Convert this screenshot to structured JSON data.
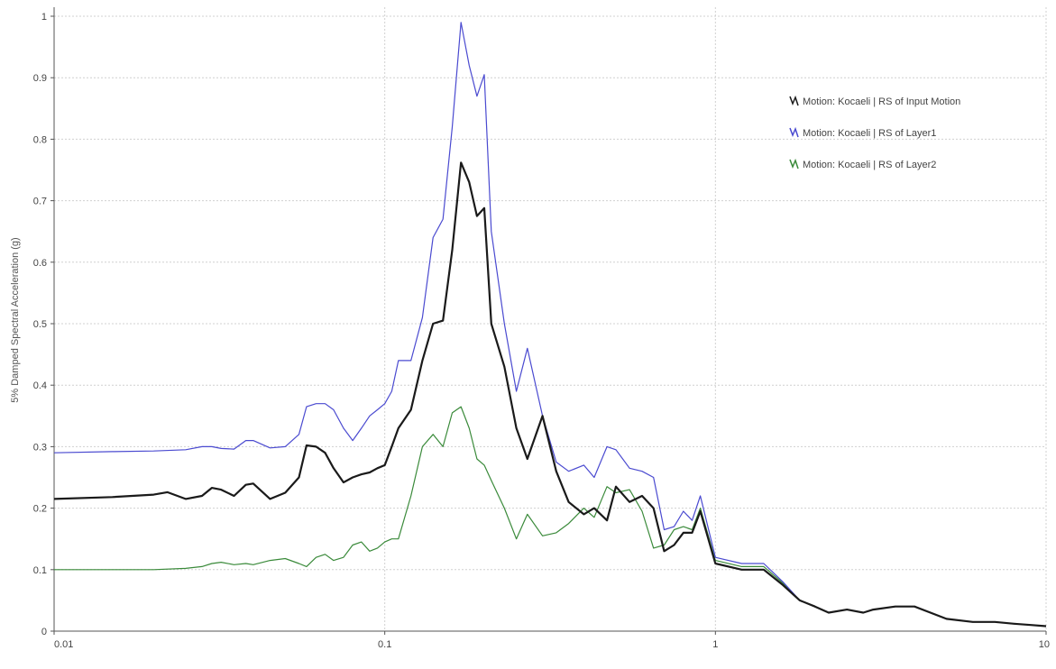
{
  "chart_data": {
    "type": "line",
    "x_scale": "log",
    "xlim": [
      0.01,
      10
    ],
    "ylim": [
      0,
      1
    ],
    "ylabel": "5% Damped Spectral Acceleration (g)",
    "xlabel": "",
    "grid": true,
    "legend_position": "top-right",
    "x_ticks": [
      "0.01",
      "0.1",
      "1",
      "10"
    ],
    "y_ticks": [
      "0",
      "0.1",
      "0.2",
      "0.3",
      "0.4",
      "0.5",
      "0.6",
      "0.7",
      "0.8",
      "0.9",
      "1"
    ],
    "series": [
      {
        "name": "Motion: Kocaeli | RS of Input Motion",
        "color": "#1a1a1a",
        "width": 2.2,
        "x": [
          0.01,
          0.015,
          0.02,
          0.022,
          0.025,
          0.028,
          0.03,
          0.032,
          0.035,
          0.038,
          0.04,
          0.045,
          0.05,
          0.055,
          0.058,
          0.062,
          0.066,
          0.07,
          0.075,
          0.08,
          0.085,
          0.09,
          0.095,
          0.1,
          0.105,
          0.11,
          0.12,
          0.13,
          0.14,
          0.15,
          0.16,
          0.17,
          0.18,
          0.19,
          0.2,
          0.21,
          0.23,
          0.25,
          0.27,
          0.3,
          0.33,
          0.36,
          0.4,
          0.43,
          0.47,
          0.5,
          0.55,
          0.6,
          0.65,
          0.7,
          0.75,
          0.8,
          0.85,
          0.9,
          1,
          1.2,
          1.4,
          1.6,
          1.8,
          2,
          2.2,
          2.5,
          2.8,
          3,
          3.5,
          4,
          5,
          6,
          7,
          8,
          9,
          10
        ],
        "y": [
          0.215,
          0.218,
          0.222,
          0.226,
          0.215,
          0.22,
          0.233,
          0.23,
          0.22,
          0.238,
          0.24,
          0.215,
          0.225,
          0.25,
          0.302,
          0.3,
          0.29,
          0.265,
          0.242,
          0.25,
          0.255,
          0.258,
          0.265,
          0.27,
          0.3,
          0.33,
          0.36,
          0.44,
          0.5,
          0.505,
          0.62,
          0.762,
          0.73,
          0.675,
          0.688,
          0.5,
          0.43,
          0.33,
          0.28,
          0.35,
          0.26,
          0.21,
          0.19,
          0.2,
          0.18,
          0.235,
          0.21,
          0.22,
          0.2,
          0.13,
          0.14,
          0.16,
          0.16,
          0.195,
          0.11,
          0.1,
          0.1,
          0.075,
          0.05,
          0.04,
          0.03,
          0.035,
          0.03,
          0.035,
          0.04,
          0.04,
          0.02,
          0.015,
          0.015,
          0.012,
          0.01,
          0.008
        ]
      },
      {
        "name": "Motion: Kocaeli | RS of Layer1",
        "color": "#4a4ad0",
        "width": 1.2,
        "x": [
          0.01,
          0.015,
          0.02,
          0.025,
          0.028,
          0.03,
          0.032,
          0.035,
          0.038,
          0.04,
          0.045,
          0.05,
          0.055,
          0.058,
          0.062,
          0.066,
          0.07,
          0.075,
          0.08,
          0.085,
          0.09,
          0.095,
          0.1,
          0.105,
          0.11,
          0.12,
          0.13,
          0.14,
          0.15,
          0.16,
          0.17,
          0.18,
          0.19,
          0.2,
          0.21,
          0.23,
          0.25,
          0.27,
          0.3,
          0.33,
          0.36,
          0.4,
          0.43,
          0.47,
          0.5,
          0.55,
          0.6,
          0.65,
          0.7,
          0.75,
          0.8,
          0.85,
          0.9,
          1,
          1.2,
          1.4,
          1.6,
          1.8,
          2,
          2.2,
          2.5,
          2.8,
          3,
          3.5,
          4,
          5,
          6,
          7,
          8,
          9,
          10
        ],
        "y": [
          0.29,
          0.292,
          0.293,
          0.295,
          0.3,
          0.3,
          0.297,
          0.296,
          0.31,
          0.31,
          0.298,
          0.3,
          0.32,
          0.365,
          0.37,
          0.37,
          0.36,
          0.33,
          0.31,
          0.33,
          0.35,
          0.36,
          0.37,
          0.39,
          0.44,
          0.44,
          0.51,
          0.64,
          0.67,
          0.82,
          0.99,
          0.92,
          0.87,
          0.905,
          0.65,
          0.5,
          0.39,
          0.46,
          0.35,
          0.275,
          0.26,
          0.27,
          0.25,
          0.3,
          0.295,
          0.265,
          0.26,
          0.25,
          0.165,
          0.17,
          0.195,
          0.18,
          0.22,
          0.12,
          0.11,
          0.11,
          0.08,
          0.05,
          0.04,
          0.03,
          0.035,
          0.03,
          0.035,
          0.04,
          0.04,
          0.02,
          0.015,
          0.015,
          0.012,
          0.01,
          0.008
        ]
      },
      {
        "name": "Motion: Kocaeli | RS of Layer2",
        "color": "#3a8a3a",
        "width": 1.2,
        "x": [
          0.01,
          0.015,
          0.02,
          0.025,
          0.028,
          0.03,
          0.032,
          0.035,
          0.038,
          0.04,
          0.045,
          0.05,
          0.055,
          0.058,
          0.062,
          0.066,
          0.07,
          0.075,
          0.08,
          0.085,
          0.09,
          0.095,
          0.1,
          0.105,
          0.11,
          0.12,
          0.13,
          0.14,
          0.15,
          0.16,
          0.17,
          0.18,
          0.19,
          0.2,
          0.21,
          0.23,
          0.25,
          0.27,
          0.3,
          0.33,
          0.36,
          0.4,
          0.43,
          0.47,
          0.5,
          0.55,
          0.6,
          0.65,
          0.7,
          0.75,
          0.8,
          0.85,
          0.9,
          1,
          1.2,
          1.4,
          1.6,
          1.8,
          2,
          2.2,
          2.5,
          2.8,
          3,
          3.5,
          4,
          5,
          6,
          7,
          8,
          9,
          10
        ],
        "y": [
          0.1,
          0.1,
          0.1,
          0.102,
          0.105,
          0.11,
          0.112,
          0.108,
          0.11,
          0.108,
          0.115,
          0.118,
          0.11,
          0.105,
          0.12,
          0.125,
          0.115,
          0.12,
          0.14,
          0.145,
          0.13,
          0.135,
          0.145,
          0.15,
          0.15,
          0.22,
          0.3,
          0.32,
          0.3,
          0.355,
          0.365,
          0.33,
          0.28,
          0.27,
          0.245,
          0.2,
          0.15,
          0.19,
          0.155,
          0.16,
          0.175,
          0.2,
          0.185,
          0.235,
          0.225,
          0.23,
          0.195,
          0.135,
          0.14,
          0.165,
          0.17,
          0.165,
          0.2,
          0.115,
          0.105,
          0.105,
          0.078,
          0.05,
          0.04,
          0.03,
          0.035,
          0.03,
          0.035,
          0.04,
          0.04,
          0.02,
          0.015,
          0.015,
          0.012,
          0.01,
          0.008
        ]
      }
    ]
  }
}
